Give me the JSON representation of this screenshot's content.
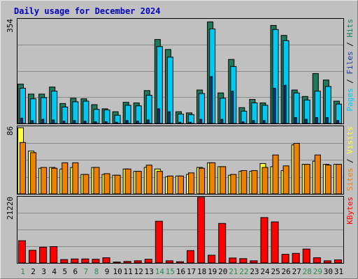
{
  "chart_data": {
    "type": "bar",
    "title": "Daily usage for December 2024",
    "categories": [
      "1",
      "2",
      "3",
      "4",
      "5",
      "6",
      "7",
      "8",
      "9",
      "10",
      "11",
      "12",
      "13",
      "14",
      "15",
      "16",
      "17",
      "18",
      "19",
      "20",
      "21",
      "22",
      "23",
      "24",
      "25",
      "26",
      "27",
      "28",
      "29",
      "30",
      "31"
    ],
    "weekend_days": [
      "1",
      "7",
      "8",
      "14",
      "15",
      "21",
      "22",
      "28",
      "29"
    ],
    "colors": {
      "hits": "#1e7a5a",
      "files": "#00c8f0",
      "pages": "#1c3c9c",
      "visits": "#ffff40",
      "sites": "#f08000",
      "kbytes": "#ff0000",
      "weekend_label": "#2c8a50",
      "weekday_label": "#000000",
      "title": "#0000c0"
    },
    "panels": [
      {
        "id": "hits-files-pages",
        "ymax_label": "354",
        "ylim": [
          0,
          354
        ],
        "right_labels": [
          {
            "text": "Pages",
            "color": "#00c8f0"
          },
          {
            "text": " / ",
            "color": "#000000"
          },
          {
            "text": "Files",
            "color": "#1c3c9c"
          },
          {
            "text": " / ",
            "color": "#000000"
          },
          {
            "text": "Hits",
            "color": "#1e7a5a"
          }
        ],
        "series": [
          {
            "name": "Hits",
            "values": [
              134,
              100,
              100,
              124,
              68,
              86,
              84,
              64,
              50,
              40,
              72,
              70,
              112,
              286,
              252,
              40,
              36,
              114,
              346,
              104,
              218,
              54,
              82,
              70,
              334,
              300,
              114,
              92,
              170,
              148,
              76
            ]
          },
          {
            "name": "Files",
            "values": [
              120,
              84,
              88,
              110,
              56,
              74,
              76,
              48,
              46,
              28,
              62,
              60,
              96,
              262,
              226,
              32,
              30,
              102,
              322,
              86,
              194,
              42,
              70,
              62,
              320,
              282,
              104,
              80,
              110,
              126,
              66
            ]
          },
          {
            "name": "Pages",
            "values": [
              18,
              10,
              14,
              12,
              8,
              10,
              8,
              6,
              6,
              4,
              10,
              8,
              12,
              50,
              40,
              4,
              4,
              14,
              160,
              14,
              110,
              6,
              10,
              10,
              120,
              130,
              20,
              14,
              20,
              20,
              10
            ]
          }
        ]
      },
      {
        "id": "visits-sites",
        "ymax_label": "86",
        "ylim": [
          0,
          86
        ],
        "right_labels": [
          {
            "text": "Sites",
            "color": "#f08000"
          },
          {
            "text": " / ",
            "color": "#000000"
          },
          {
            "text": "Visits",
            "color": "#ffff40"
          }
        ],
        "series": [
          {
            "name": "Visits",
            "values": [
              85,
              55,
              33,
              34,
              32,
              34,
              25,
              34,
              25,
              24,
              32,
              29,
              34,
              32,
              22,
              23,
              25,
              34,
              40,
              35,
              24,
              29,
              29,
              39,
              35,
              30,
              63,
              38,
              42,
              38,
              38
            ]
          },
          {
            "name": "Sites",
            "values": [
              66,
              53,
              34,
              33,
              40,
              40,
              25,
              34,
              26,
              24,
              32,
              29,
              37,
              29,
              23,
              23,
              27,
              33,
              40,
              35,
              25,
              30,
              30,
              34,
              50,
              36,
              65,
              38,
              50,
              37,
              38
            ]
          }
        ]
      },
      {
        "id": "kbytes",
        "ymax_label": "21220",
        "ylim": [
          0,
          21220
        ],
        "right_labels": [
          {
            "text": "KBytes",
            "color": "#ff0000"
          }
        ],
        "series": [
          {
            "name": "KBytes",
            "values": [
              7200,
              4100,
              5100,
              5300,
              1100,
              1300,
              1300,
              1200,
              1700,
              300,
              500,
              700,
              1200,
              13500,
              700,
              400,
              4000,
              21220,
              2500,
              12800,
              1600,
              1400,
              700,
              14700,
              13300,
              2800,
              3100,
              4500,
              1700,
              700,
              1000
            ]
          }
        ]
      }
    ]
  }
}
